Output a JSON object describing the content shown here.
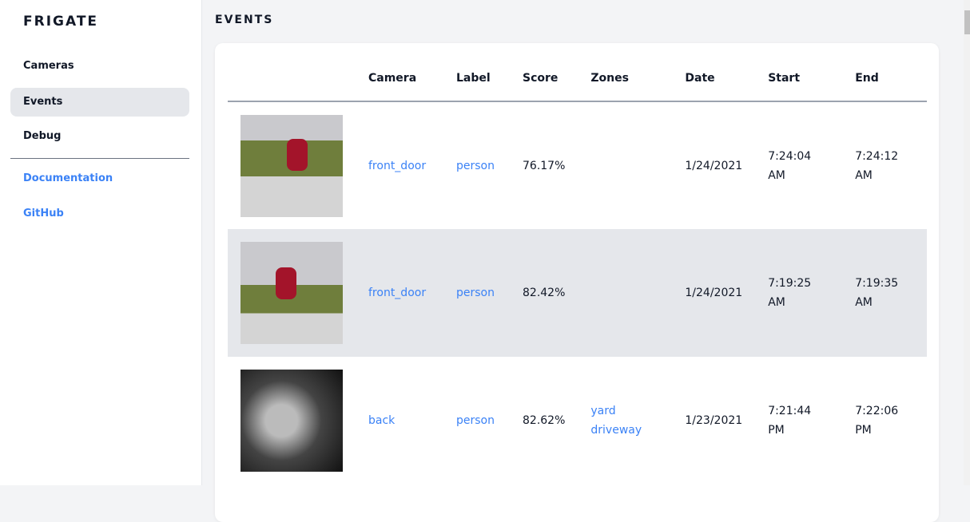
{
  "sidebar": {
    "brand": "FRIGATE",
    "items": [
      {
        "label": "Cameras"
      },
      {
        "label": "Events",
        "active": true
      },
      {
        "label": "Debug"
      }
    ],
    "links": [
      {
        "label": "Documentation"
      },
      {
        "label": "GitHub"
      }
    ]
  },
  "main": {
    "title": "EVENTS",
    "columns": [
      "",
      "Camera",
      "Label",
      "Score",
      "Zones",
      "Date",
      "Start",
      "End"
    ],
    "rows": [
      {
        "camera": "front_door",
        "label": "person",
        "score": "76.17%",
        "zones": [
          "",
          ""
        ],
        "date": "1/24/2021",
        "start": "7:24:04 AM",
        "end": "7:24:12 AM"
      },
      {
        "camera": "front_door",
        "label": "person",
        "score": "82.42%",
        "zones": [
          "",
          ""
        ],
        "date": "1/24/2021",
        "start": "7:19:25 AM",
        "end": "7:19:35 AM"
      },
      {
        "camera": "back",
        "label": "person",
        "score": "82.62%",
        "zones": [
          "yard",
          "driveway"
        ],
        "date": "1/23/2021",
        "start": "7:21:44 PM",
        "end": "7:22:06 PM"
      }
    ]
  },
  "colors": {
    "link": "#3b82f6",
    "active_bg": "#e5e7eb",
    "page_bg": "#f3f4f6"
  }
}
